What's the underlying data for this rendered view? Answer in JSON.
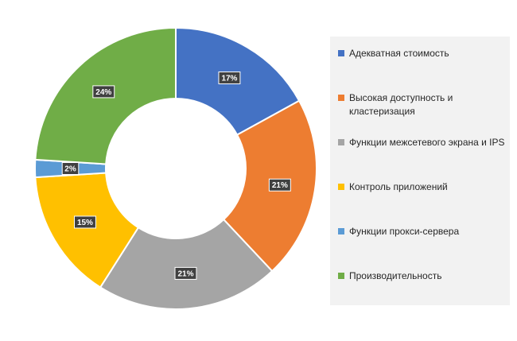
{
  "chart_data": {
    "type": "pie",
    "hole": true,
    "categories": [
      "Адекватная стоимость",
      "Высокая доступность и кластеризация",
      "Функции межсетевого экрана и IPS",
      "Контроль приложений",
      "Функции прокси-сервера",
      "Производительность"
    ],
    "values": [
      17,
      21,
      21,
      15,
      2,
      24
    ],
    "data_labels": [
      "17%",
      "21%",
      "21%",
      "15%",
      "2%",
      "24%"
    ],
    "colors": [
      "#4472c4",
      "#ed7d31",
      "#a5a5a5",
      "#ffc000",
      "#5b9bd5",
      "#70ad47"
    ],
    "legend_position": "right"
  }
}
